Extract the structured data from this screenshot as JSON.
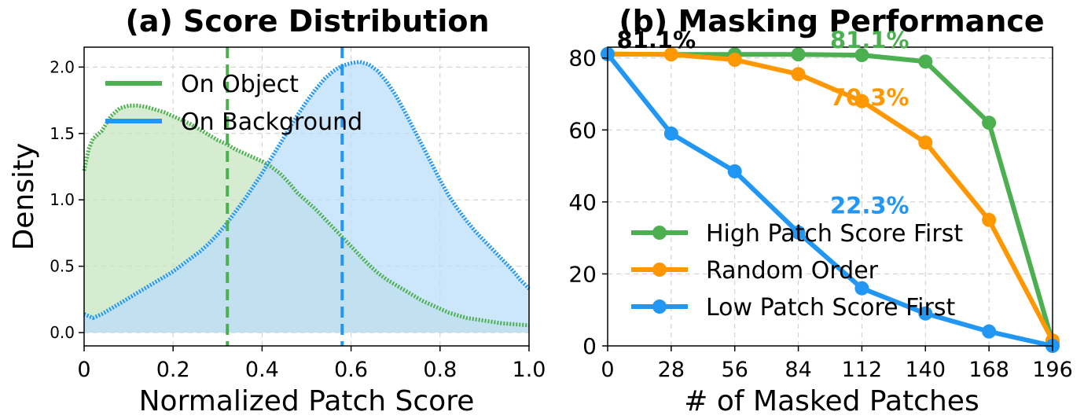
{
  "colors": {
    "green": "#4caf50",
    "blue": "#2196f3",
    "orange": "#ff9800",
    "green_fill": "#c8e6c0",
    "blue_fill": "#bbdefb",
    "grid": "#cccccc",
    "axis": "#000000"
  },
  "chart_data": [
    {
      "type": "area",
      "title": "(a) Score Distribution",
      "xlabel": "Normalized Patch Score",
      "ylabel": "Density",
      "xlim": [
        0,
        1.0
      ],
      "ylim": [
        -0.1,
        2.15
      ],
      "xticks": [
        0,
        0.2,
        0.4,
        0.6,
        0.8,
        1.0
      ],
      "xtick_labels": [
        "0",
        "0.2",
        "0.4",
        "0.6",
        "0.8",
        "1.0"
      ],
      "yticks": [
        0.0,
        0.5,
        1.0,
        1.5,
        2.0
      ],
      "ytick_labels": [
        "0.0",
        "0.5",
        "1.0",
        "1.5",
        "2.0"
      ],
      "grid": true,
      "legend_position": "top-left",
      "series": [
        {
          "name": "On Object",
          "color_key": "green",
          "mean_line": 0.322,
          "x": [
            0,
            0.01,
            0.02,
            0.04,
            0.06,
            0.08,
            0.1,
            0.12,
            0.14,
            0.16,
            0.18,
            0.2,
            0.22,
            0.24,
            0.26,
            0.28,
            0.3,
            0.32,
            0.34,
            0.36,
            0.38,
            0.4,
            0.42,
            0.44,
            0.46,
            0.48,
            0.5,
            0.52,
            0.54,
            0.56,
            0.58,
            0.6,
            0.62,
            0.64,
            0.66,
            0.68,
            0.7,
            0.72,
            0.74,
            0.76,
            0.78,
            0.8,
            0.82,
            0.84,
            0.86,
            0.88,
            0.9,
            0.92,
            0.94,
            0.96,
            0.98,
            1.0
          ],
          "y": [
            1.22,
            1.38,
            1.46,
            1.52,
            1.63,
            1.69,
            1.71,
            1.71,
            1.7,
            1.68,
            1.66,
            1.63,
            1.6,
            1.57,
            1.53,
            1.49,
            1.45,
            1.42,
            1.38,
            1.35,
            1.32,
            1.29,
            1.25,
            1.2,
            1.13,
            1.05,
            0.99,
            0.93,
            0.86,
            0.79,
            0.72,
            0.65,
            0.58,
            0.51,
            0.45,
            0.4,
            0.36,
            0.32,
            0.28,
            0.24,
            0.21,
            0.18,
            0.15,
            0.13,
            0.11,
            0.1,
            0.09,
            0.08,
            0.07,
            0.065,
            0.06,
            0.055
          ]
        },
        {
          "name": "On Background",
          "color_key": "blue",
          "mean_line": 0.58,
          "x": [
            0,
            0.02,
            0.04,
            0.06,
            0.08,
            0.1,
            0.12,
            0.14,
            0.16,
            0.18,
            0.2,
            0.22,
            0.24,
            0.26,
            0.28,
            0.3,
            0.32,
            0.34,
            0.36,
            0.38,
            0.4,
            0.42,
            0.44,
            0.46,
            0.48,
            0.5,
            0.52,
            0.54,
            0.56,
            0.58,
            0.6,
            0.62,
            0.64,
            0.66,
            0.68,
            0.7,
            0.72,
            0.74,
            0.76,
            0.78,
            0.8,
            0.82,
            0.84,
            0.86,
            0.88,
            0.9,
            0.92,
            0.94,
            0.96,
            0.98,
            1.0
          ],
          "y": [
            0.14,
            0.11,
            0.14,
            0.18,
            0.22,
            0.26,
            0.3,
            0.34,
            0.38,
            0.42,
            0.46,
            0.51,
            0.56,
            0.61,
            0.67,
            0.74,
            0.82,
            0.91,
            1.0,
            1.1,
            1.2,
            1.31,
            1.42,
            1.53,
            1.64,
            1.74,
            1.83,
            1.91,
            1.97,
            2.01,
            2.03,
            2.04,
            2.02,
            1.97,
            1.89,
            1.79,
            1.67,
            1.54,
            1.41,
            1.28,
            1.15,
            1.03,
            0.93,
            0.84,
            0.76,
            0.69,
            0.62,
            0.55,
            0.48,
            0.4,
            0.33
          ]
        }
      ]
    },
    {
      "type": "line",
      "title": "(b) Masking Performance",
      "xlabel": "# of Masked Patches",
      "ylabel": "",
      "categories": [
        "0",
        "28",
        "56",
        "84",
        "112",
        "140",
        "168",
        "196"
      ],
      "x": [
        0,
        28,
        56,
        84,
        112,
        140,
        168,
        196
      ],
      "xlim": [
        0,
        196
      ],
      "ylim": [
        0,
        83
      ],
      "yticks": [
        0,
        20,
        40,
        60,
        80
      ],
      "ytick_labels": [
        "0",
        "20",
        "40",
        "60",
        "80"
      ],
      "grid": true,
      "legend_position": "lower-center",
      "series": [
        {
          "name": "High Patch Score First",
          "color_key": "green",
          "values": [
            81.1,
            81.0,
            81.0,
            81.0,
            80.8,
            79.0,
            62.0,
            1.0
          ]
        },
        {
          "name": "Random Order",
          "color_key": "orange",
          "values": [
            81.1,
            81.0,
            79.5,
            75.5,
            68.0,
            56.5,
            35.0,
            1.5
          ]
        },
        {
          "name": "Low Patch Score First",
          "color_key": "blue",
          "values": [
            81.1,
            59.0,
            48.5,
            31.5,
            16.0,
            9.0,
            4.0,
            0.0
          ]
        }
      ],
      "annotations": [
        {
          "text": "81.1%",
          "color_key": "axis",
          "x": 4,
          "y": 85
        },
        {
          "text": "81.1%",
          "color_key": "green",
          "x": 98,
          "y": 85
        },
        {
          "text": "70.3%",
          "color_key": "orange",
          "x": 98,
          "y": 69
        },
        {
          "text": "22.3%",
          "color_key": "blue",
          "x": 98,
          "y": 39
        }
      ]
    }
  ]
}
